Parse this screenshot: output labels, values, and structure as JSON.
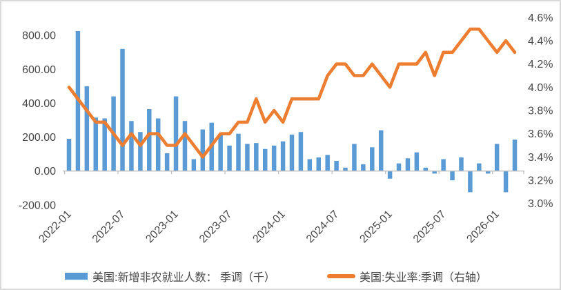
{
  "window": {
    "background": "#ffffff",
    "border_color": "#d9d9d9"
  },
  "chart_data": {
    "type": "bar",
    "subtype": "combo-bar-line-dual-axis",
    "months": [
      "2022-01",
      "2022-02",
      "2022-03",
      "2022-04",
      "2022-05",
      "2022-06",
      "2022-07",
      "2022-08",
      "2022-09",
      "2022-10",
      "2022-11",
      "2022-12",
      "2023-01",
      "2023-02",
      "2023-03",
      "2023-04",
      "2023-05",
      "2023-06",
      "2023-07",
      "2023-08",
      "2023-09",
      "2023-10",
      "2023-11",
      "2023-12",
      "2024-01",
      "2024-02",
      "2024-03",
      "2024-04",
      "2024-05",
      "2024-06",
      "2024-07",
      "2024-08",
      "2024-09",
      "2024-10",
      "2024-11",
      "2024-12",
      "2025-01",
      "2025-02",
      "2025-03",
      "2025-04",
      "2025-05",
      "2025-06",
      "2025-07",
      "2025-08",
      "2025-09",
      "2025-10",
      "2025-11",
      "2025-12",
      "2026-01",
      "2026-02",
      "2026-03"
    ],
    "series": [
      {
        "name": "美国:新增非农就业人数： 季调（千）",
        "type": "bar",
        "axis": "left",
        "color": "#5B9BD5",
        "values": [
          190,
          825,
          500,
          315,
          310,
          440,
          720,
          295,
          230,
          365,
          310,
          105,
          440,
          295,
          70,
          245,
          285,
          215,
          150,
          220,
          160,
          165,
          130,
          150,
          175,
          215,
          230,
          70,
          80,
          95,
          60,
          20,
          160,
          40,
          140,
          240,
          -45,
          45,
          75,
          110,
          20,
          -15,
          70,
          -55,
          80,
          -125,
          45,
          -15,
          160,
          -125,
          185
        ]
      },
      {
        "name": "美国:失业率:季调（右轴）",
        "type": "line",
        "axis": "right",
        "color": "#ED7D31",
        "values": [
          4.0,
          3.9,
          3.8,
          3.7,
          3.7,
          3.6,
          3.5,
          3.6,
          3.5,
          3.6,
          3.6,
          3.5,
          3.5,
          3.6,
          3.5,
          3.4,
          3.5,
          3.6,
          3.6,
          3.7,
          3.7,
          3.9,
          3.7,
          3.8,
          3.7,
          3.9,
          3.9,
          3.9,
          3.9,
          4.1,
          4.2,
          4.2,
          4.1,
          4.1,
          4.2,
          4.1,
          4.0,
          4.2,
          4.2,
          4.2,
          4.3,
          4.1,
          4.3,
          4.3,
          4.4,
          4.5,
          4.5,
          4.4,
          4.3,
          4.4,
          4.3
        ]
      }
    ],
    "left_axis": {
      "tick_labels": [
        "800.00",
        "600.00",
        "400.00",
        "200.00",
        "0.00",
        "-200.00"
      ],
      "tick_values": [
        800,
        600,
        400,
        200,
        0,
        -200
      ],
      "min": -200,
      "max": 900
    },
    "right_axis": {
      "tick_labels": [
        "4.6%",
        "4.4%",
        "4.2%",
        "4.0%",
        "3.8%",
        "3.6%",
        "3.4%",
        "3.2%",
        "3.0%"
      ],
      "tick_values": [
        4.6,
        4.4,
        4.2,
        4.0,
        3.8,
        3.6,
        3.4,
        3.2,
        3.0
      ],
      "min": 3.0,
      "max": 4.65
    },
    "x_axis": {
      "visible_tick_labels": [
        "2022-01",
        "2022-07",
        "2023-01",
        "2023-07",
        "2024-01",
        "2024-07",
        "2025-01",
        "2025-07",
        "2026-01"
      ],
      "visible_tick_month_indices": [
        0,
        6,
        12,
        18,
        24,
        30,
        36,
        42,
        48
      ],
      "label_rotation_deg": -45
    },
    "grid": "off",
    "legend_position": "bottom",
    "title": ""
  },
  "legend": {
    "items": [
      {
        "label": "美国:新增非农就业人数： 季调（千）",
        "color": "#5B9BD5",
        "marker": "bar"
      },
      {
        "label": "美国:失业率:季调（右轴）",
        "color": "#ED7D31",
        "marker": "line"
      }
    ]
  },
  "style": {
    "axis_line_color": "#BFBFBF",
    "text_color": "#474747",
    "bar_color": "#5B9BD5",
    "line_color": "#ED7D31"
  }
}
